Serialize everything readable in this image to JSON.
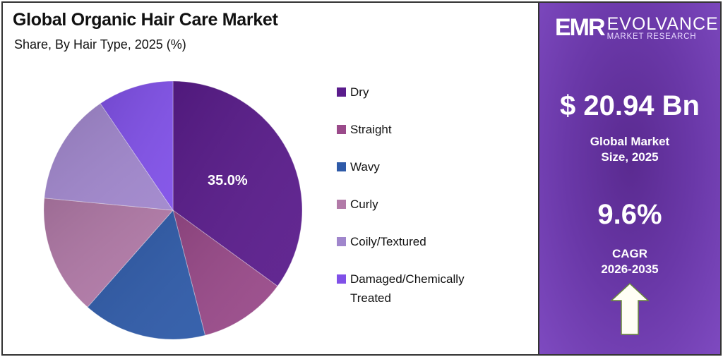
{
  "header": {
    "title": "Global Organic Hair Care Market",
    "subtitle": "Share, By Hair Type, 2025 (%)"
  },
  "pie": {
    "highlight_label": "35.0%"
  },
  "legend": [
    {
      "label": "Dry",
      "color": "#5a1c8c"
    },
    {
      "label": "Straight",
      "color": "#9a4a8a"
    },
    {
      "label": "Wavy",
      "color": "#2e5aa8"
    },
    {
      "label": "Curly",
      "color": "#b27aa8"
    },
    {
      "label": "Coily/Textured",
      "color": "#a086cc"
    },
    {
      "label": "Damaged/Chemically Treated",
      "color": "#8050e8"
    }
  ],
  "brand": {
    "mark": "EMR",
    "name": "EVOLVANCE",
    "sub": "MARKET RESEARCH"
  },
  "stats": {
    "market_value": "$ 20.94 Bn",
    "market_label_line1": "Global Market",
    "market_label_line2": "Size, 2025",
    "cagr_value": "9.6%",
    "cagr_label_line1": "CAGR",
    "cagr_label_line2": "2026-2035",
    "arrow_icon": "up-arrow-icon"
  },
  "chart_data": {
    "type": "pie",
    "title": "Global Organic Hair Care Market",
    "subtitle": "Share, By Hair Type, 2025 (%)",
    "categories": [
      "Dry",
      "Straight",
      "Wavy",
      "Curly",
      "Coily/Textured",
      "Damaged/Chemically Treated"
    ],
    "values": [
      35.0,
      11.0,
      15.5,
      15.0,
      14.0,
      9.5
    ],
    "colors": [
      "#5a1c8c",
      "#9a4a8a",
      "#2e5aa8",
      "#b27aa8",
      "#a086cc",
      "#8050e8"
    ],
    "data_labels": {
      "Dry": "35.0%"
    },
    "legend_position": "right",
    "start_angle": "12 o'clock, clockwise"
  }
}
